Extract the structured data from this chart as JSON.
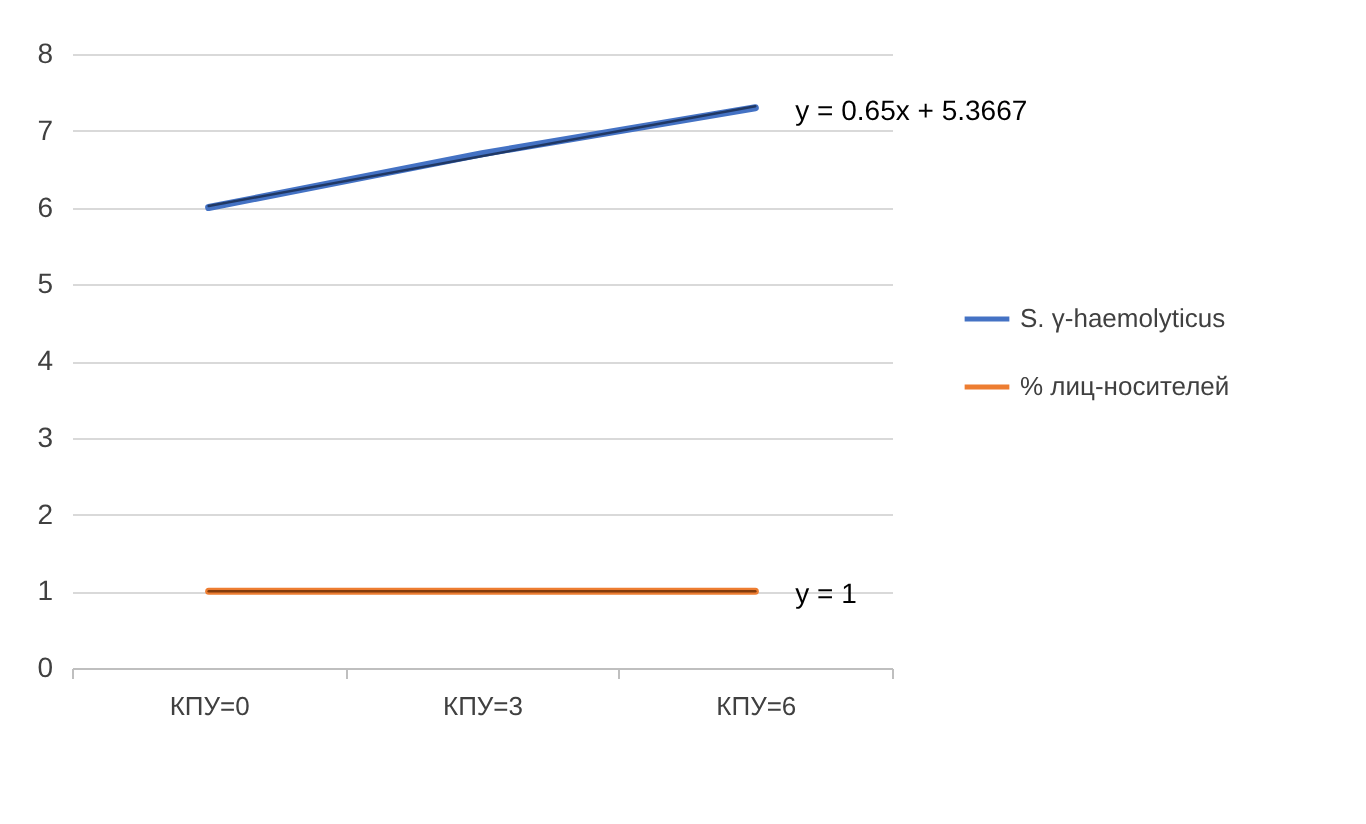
{
  "chart_data": {
    "type": "line",
    "categories": [
      "КПУ=0",
      "КПУ=3",
      "КПУ=6"
    ],
    "series": [
      {
        "name": "S. γ-haemolyticus",
        "color": "#4472c4",
        "values": [
          6,
          6.7,
          7.3
        ]
      },
      {
        "name": "% лиц-носителей",
        "color": "#ed7d31",
        "values": [
          1,
          1,
          1
        ]
      },
      {
        "type": "line",
        "color": "#203864",
        "x": [
          "КПУ=0",
          "КПУ=6"
        ],
        "values": [
          6.02,
          7.32
        ]
      },
      {
        "type": "line",
        "color": "#843c0c",
        "x": [
          "КПУ=0",
          "КПУ=6"
        ],
        "values": [
          1,
          1
        ]
      }
    ],
    "ylim": [
      0,
      8
    ],
    "yticks": [
      0,
      1,
      2,
      3,
      4,
      5,
      6,
      7,
      8
    ],
    "grid": "y",
    "legend": "right",
    "marker": "none",
    "annotations": [
      {
        "text": "y = 0.65x + 5.3667",
        "x": "КПУ=6",
        "y": 7.3
      },
      {
        "text": "y = 1",
        "x": "КПУ=6",
        "y": 1
      }
    ]
  }
}
